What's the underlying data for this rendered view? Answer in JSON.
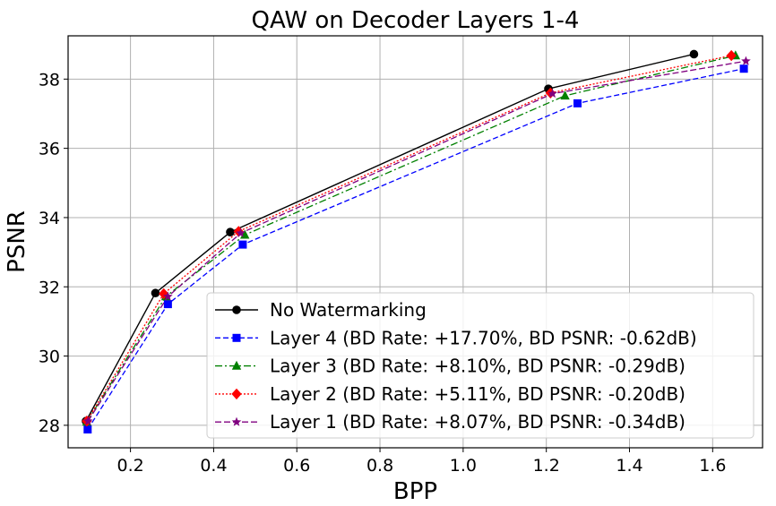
{
  "chart_data": {
    "type": "line",
    "title": "QAW on Decoder Layers 1-4",
    "xlabel": "BPP",
    "ylabel": "PSNR",
    "xlim": [
      0.05,
      1.72
    ],
    "ylim": [
      27.35,
      39.25
    ],
    "xticks": [
      0.2,
      0.4,
      0.6,
      0.8,
      1.0,
      1.2,
      1.4,
      1.6
    ],
    "xtick_labels": [
      "0.2",
      "0.4",
      "0.6",
      "0.8",
      "1.0",
      "1.2",
      "1.4",
      "1.6"
    ],
    "yticks": [
      28,
      30,
      32,
      34,
      36,
      38
    ],
    "ytick_labels": [
      "28",
      "30",
      "32",
      "34",
      "36",
      "38"
    ],
    "grid": true,
    "legend_position": "lower-right",
    "series": [
      {
        "name": "No Watermarking",
        "color": "#000000",
        "dash": "solid",
        "marker": "circle",
        "x": [
          0.093,
          0.26,
          0.44,
          1.205,
          1.555
        ],
        "y": [
          28.12,
          31.82,
          33.58,
          37.72,
          38.72
        ]
      },
      {
        "name": "Layer 4 (BD Rate: +17.70%, BD PSNR: -0.62dB)",
        "color": "#0000ff",
        "dash": "dashed",
        "marker": "square",
        "x": [
          0.097,
          0.29,
          0.47,
          1.275,
          1.675
        ],
        "y": [
          27.88,
          31.5,
          33.22,
          37.3,
          38.3
        ]
      },
      {
        "name": "Layer 3 (BD Rate: +8.10%, BD PSNR: -0.29dB)",
        "color": "#008000",
        "dash": "dashdot",
        "marker": "triangle",
        "x": [
          0.095,
          0.285,
          0.475,
          1.245,
          1.655
        ],
        "y": [
          28.1,
          31.72,
          33.5,
          37.52,
          38.68
        ]
      },
      {
        "name": "Layer 2 (BD Rate: +5.11%, BD PSNR: -0.20dB)",
        "color": "#ff0000",
        "dash": "dotted",
        "marker": "diamond",
        "x": [
          0.095,
          0.28,
          0.46,
          1.21,
          1.645
        ],
        "y": [
          28.12,
          31.8,
          33.6,
          37.6,
          38.68
        ]
      },
      {
        "name": "Layer 1 (BD Rate: +8.07%, BD PSNR: -0.34dB)",
        "color": "#800080",
        "dash": "loose-dashed",
        "marker": "star",
        "x": [
          0.098,
          0.29,
          0.465,
          1.215,
          1.68
        ],
        "y": [
          28.12,
          31.72,
          33.55,
          37.58,
          38.52
        ]
      }
    ]
  }
}
